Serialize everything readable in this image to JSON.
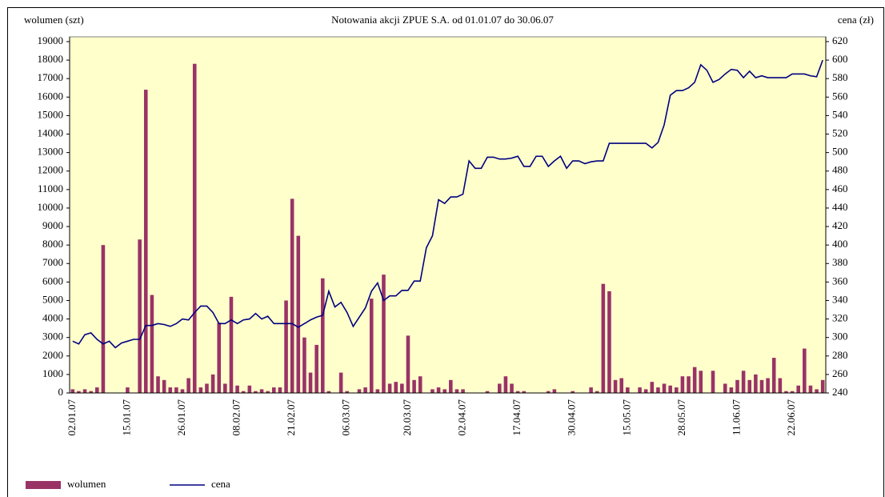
{
  "chart_data": {
    "type": "combo",
    "title": "Notowania akcji ZPUE S.A. od 01.01.07 do 30.06.07",
    "y_label": "wolumen (szt)",
    "y2_label": "cena (zł)",
    "categories": [
      "02.01.07",
      null,
      null,
      null,
      null,
      null,
      null,
      null,
      null,
      "15.01.07",
      null,
      null,
      null,
      null,
      null,
      null,
      null,
      null,
      "26.01.07",
      null,
      null,
      null,
      null,
      null,
      null,
      null,
      null,
      "08.02.07",
      null,
      null,
      null,
      null,
      null,
      null,
      null,
      null,
      "21.02.07",
      null,
      null,
      null,
      null,
      null,
      null,
      null,
      null,
      "06.03.07",
      null,
      null,
      null,
      null,
      null,
      null,
      null,
      null,
      null,
      "20.03.07",
      null,
      null,
      null,
      null,
      null,
      null,
      null,
      null,
      "02.04.07",
      null,
      null,
      null,
      null,
      null,
      null,
      null,
      null,
      "17.04.07",
      null,
      null,
      null,
      null,
      null,
      null,
      null,
      null,
      "30.04.07",
      null,
      null,
      null,
      null,
      null,
      null,
      null,
      null,
      "15.05.07",
      null,
      null,
      null,
      null,
      null,
      null,
      null,
      null,
      "28.05.07",
      null,
      null,
      null,
      null,
      null,
      null,
      null,
      null,
      "11.06.07",
      null,
      null,
      null,
      null,
      null,
      null,
      null,
      null,
      "22.06.07",
      null,
      null,
      null,
      null,
      null
    ],
    "series": [
      {
        "name": "wolumen",
        "type": "bar",
        "color": "#993366",
        "values": [
          200,
          100,
          200,
          100,
          300,
          8000,
          0,
          0,
          0,
          300,
          0,
          8300,
          16400,
          5300,
          900,
          700,
          300,
          300,
          200,
          800,
          17800,
          300,
          500,
          1000,
          3800,
          500,
          5200,
          400,
          100,
          400,
          100,
          200,
          100,
          300,
          300,
          5000,
          10500,
          8500,
          3000,
          1100,
          2600,
          6200,
          100,
          0,
          1100,
          100,
          0,
          200,
          300,
          5100,
          200,
          6400,
          500,
          600,
          500,
          3100,
          700,
          900,
          0,
          200,
          300,
          200,
          700,
          200,
          200,
          0,
          0,
          0,
          100,
          0,
          500,
          900,
          500,
          100,
          100,
          0,
          0,
          0,
          100,
          200,
          0,
          0,
          100,
          0,
          0,
          300,
          100,
          5900,
          5500,
          700,
          800,
          300,
          0,
          300,
          200,
          600,
          300,
          500,
          400,
          300,
          900,
          900,
          1400,
          1200,
          0,
          1200,
          0,
          500,
          300,
          700,
          1200,
          700,
          1000,
          700,
          800,
          1900,
          800,
          100,
          100,
          400,
          2400,
          400,
          200,
          700
        ]
      },
      {
        "name": "cena",
        "type": "line",
        "axis": "y2",
        "color": "#000080",
        "values": [
          296,
          293,
          303,
          305,
          298,
          293,
          296,
          289,
          294,
          296,
          298,
          298,
          313,
          313,
          315,
          314,
          312,
          315,
          320,
          319,
          327,
          334,
          334,
          327,
          315,
          315,
          319,
          315,
          319,
          320,
          326,
          320,
          323,
          315,
          315,
          315,
          315,
          311,
          315,
          319,
          322,
          324,
          350,
          333,
          338,
          327,
          312,
          322,
          332,
          350,
          359,
          340,
          345,
          345,
          351,
          351,
          361,
          361,
          397,
          410,
          449,
          445,
          452,
          452,
          455,
          491,
          483,
          483,
          495,
          495,
          493,
          493,
          494,
          496,
          485,
          485,
          496,
          496,
          485,
          491,
          496,
          483,
          491,
          491,
          488,
          490,
          491,
          491,
          510,
          510,
          510,
          510,
          510,
          510,
          510,
          505,
          511,
          530,
          562,
          567,
          567,
          570,
          576,
          595,
          589,
          576,
          579,
          585,
          590,
          589,
          581,
          588,
          581,
          583,
          581,
          581,
          581,
          581,
          585,
          585,
          585,
          583,
          582,
          600
        ]
      }
    ],
    "ylim": [
      0,
      19000
    ],
    "yticks": [
      0,
      1000,
      2000,
      3000,
      4000,
      5000,
      6000,
      7000,
      8000,
      9000,
      10000,
      11000,
      12000,
      13000,
      14000,
      15000,
      16000,
      17000,
      18000,
      19000
    ],
    "y2lim": [
      240,
      620
    ],
    "y2ticks": [
      240,
      260,
      280,
      300,
      320,
      340,
      360,
      380,
      400,
      420,
      440,
      460,
      480,
      500,
      520,
      540,
      560,
      580,
      600,
      620
    ],
    "plot_background": "#ffffcc",
    "legend": "bottom-left"
  }
}
